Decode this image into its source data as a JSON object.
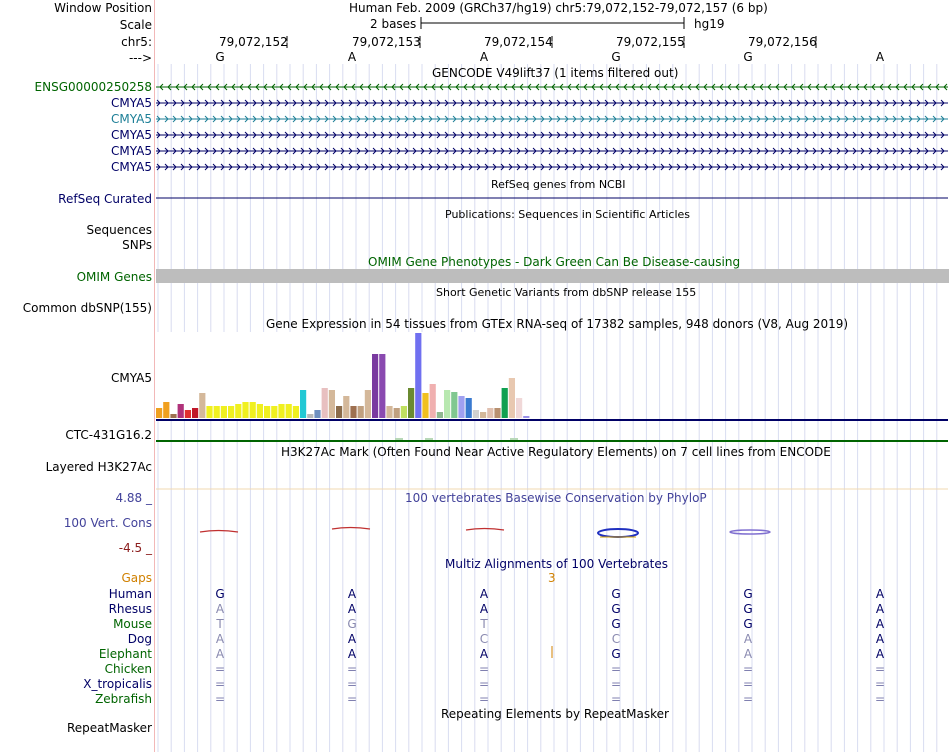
{
  "colors": {
    "navy": "#000066",
    "green": "#006400",
    "teal": "#1d7f97",
    "purple": "#42429a",
    "orange": "#d08000",
    "maroon": "#8b1c1c"
  },
  "header": {
    "window_position_label": "Window Position",
    "window_position_value": "Human Feb. 2009 (GRCh37/hg19)   chr5:79,072,152-79,072,157 (6 bp)",
    "scale_label": "Scale",
    "scale_value": "2 bases",
    "scale_assembly": "hg19",
    "chrom_label": "chr5:",
    "arrow_label": "--->",
    "coords": [
      "79,072,152",
      "79,072,153",
      "79,072,154",
      "79,072,155",
      "79,072,156"
    ],
    "bases": [
      "G",
      "A",
      "A",
      "G",
      "G",
      "A"
    ]
  },
  "gencode": {
    "title": "GENCODE V49lift37 (1 items filtered out)",
    "rows": [
      {
        "label": "ENSG00000250258",
        "dir": "rev",
        "color": "#006400"
      },
      {
        "label": "CMYA5",
        "dir": "fwd",
        "color": "#000066"
      },
      {
        "label": "CMYA5",
        "dir": "fwd",
        "color": "#1d7f97"
      },
      {
        "label": "CMYA5",
        "dir": "fwd",
        "color": "#000066"
      },
      {
        "label": "CMYA5",
        "dir": "fwd",
        "color": "#000066"
      },
      {
        "label": "CMYA5",
        "dir": "fwd",
        "color": "#000066"
      }
    ]
  },
  "refseq": {
    "title": "RefSeq genes from NCBI",
    "label": "RefSeq Curated"
  },
  "publications": {
    "title": "Publications: Sequences in Scientific Articles",
    "label1": "Sequences",
    "label2": "SNPs"
  },
  "omim": {
    "title": "OMIM Gene Phenotypes - Dark Green Can Be Disease-causing",
    "label": "OMIM Genes"
  },
  "dbsnp": {
    "title": "Short Genetic Variants from dbSNP release 155",
    "label": "Common dbSNP(155)"
  },
  "gtex": {
    "title": "Gene Expression in 54 tissues from GTEx RNA-seq of 17382 samples, 948 donors (V8, Aug 2019)",
    "label": "CMYA5",
    "label2": "CTC-431G16.2"
  },
  "h3k27ac": {
    "title": "H3K27Ac Mark (Often Found Near Active Regulatory Elements) on 7 cell lines from ENCODE",
    "label": "Layered H3K27Ac"
  },
  "phylop": {
    "title": "100 vertebrates Basewise Conservation by PhyloP",
    "label": "100 Vert. Cons",
    "max": "4.88 _",
    "min": "-4.5 _"
  },
  "multiz": {
    "title": "Multiz Alignments of 100 Vertebrates",
    "gaps_label": "Gaps",
    "gap_count": "3",
    "species": [
      {
        "name": "Human",
        "color": "#000066",
        "bases": [
          "G",
          "A",
          "A",
          "G",
          "G",
          "A"
        ]
      },
      {
        "name": "Rhesus",
        "color": "#000066",
        "bases": [
          "A",
          "A",
          "A",
          "G",
          "G",
          "A"
        ]
      },
      {
        "name": "Mouse",
        "color": "#006400",
        "bases": [
          "T",
          "G",
          "T",
          "G",
          "G",
          "A"
        ]
      },
      {
        "name": "Dog",
        "color": "#000066",
        "bases": [
          "A",
          "A",
          "C",
          "C",
          "A",
          "A"
        ]
      },
      {
        "name": "Elephant",
        "color": "#006400",
        "bases": [
          "A",
          "A",
          "A",
          "G",
          "A",
          "A"
        ]
      },
      {
        "name": "Chicken",
        "color": "#006400",
        "bases": [
          "=",
          "=",
          "=",
          "=",
          "=",
          "="
        ]
      },
      {
        "name": "X_tropicalis",
        "color": "#000066",
        "bases": [
          "=",
          "=",
          "=",
          "=",
          "=",
          "="
        ]
      },
      {
        "name": "Zebrafish",
        "color": "#006400",
        "bases": [
          "=",
          "=",
          "=",
          "=",
          "=",
          "="
        ]
      }
    ]
  },
  "repeatmasker": {
    "title": "Repeating Elements by RepeatMasker",
    "label": "RepeatMasker"
  }
}
